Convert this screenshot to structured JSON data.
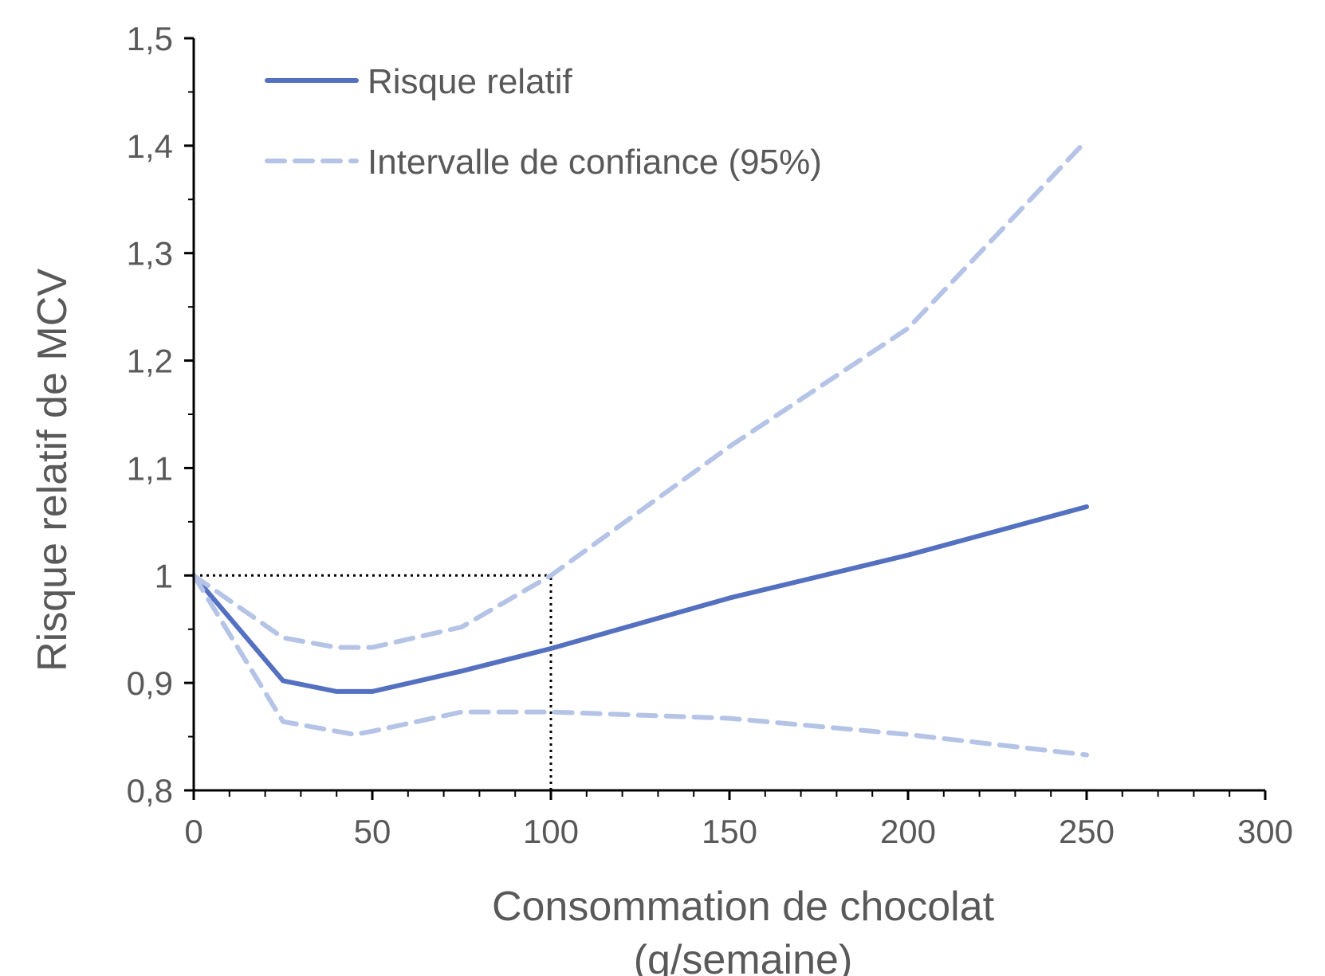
{
  "chart_data": {
    "type": "line",
    "xlabel": [
      "Consommation de chocolat",
      "(g/semaine)"
    ],
    "ylabel": "Risque relatif de MCV",
    "xlim": [
      0,
      300
    ],
    "ylim": [
      0.8,
      1.5
    ],
    "x_ticks": [
      0,
      50,
      100,
      150,
      200,
      250,
      300
    ],
    "x_tick_labels": [
      "0",
      "50",
      "100",
      "150",
      "200",
      "250",
      "300"
    ],
    "y_ticks": [
      0.8,
      0.9,
      1.0,
      1.1,
      1.2,
      1.3,
      1.4,
      1.5
    ],
    "y_tick_labels": [
      "0,8",
      "0,9",
      "1",
      "1,1",
      "1,2",
      "1,3",
      "1,4",
      "1,5"
    ],
    "grid": false,
    "legend_position": "top-left",
    "series": [
      {
        "name": "Risque relatif",
        "style": "solid",
        "color": "#5470C0",
        "x": [
          0,
          25,
          40,
          50,
          75,
          100,
          150,
          200,
          250
        ],
        "y": [
          1.0,
          0.902,
          0.892,
          0.892,
          0.911,
          0.932,
          0.979,
          1.019,
          1.064
        ]
      },
      {
        "name": "Intervalle de confiance (95%)",
        "style": "dashed",
        "color": "#B4C3E6",
        "x": [
          0,
          25,
          40,
          50,
          75,
          100,
          150,
          200,
          250
        ],
        "y": [
          1.0,
          0.942,
          0.933,
          0.933,
          0.952,
          1.0,
          1.12,
          1.23,
          1.405
        ]
      },
      {
        "name": "",
        "style": "dashed",
        "color": "#B4C3E6",
        "x": [
          0,
          25,
          45,
          50,
          75,
          100,
          150,
          200,
          250
        ],
        "y": [
          1.0,
          0.864,
          0.852,
          0.855,
          0.873,
          0.873,
          0.867,
          0.852,
          0.833
        ]
      }
    ],
    "reference_lines": {
      "style": "dotted",
      "color": "#000000",
      "horizontal": {
        "y": 1.0,
        "x_from": 0,
        "x_to": 100
      },
      "vertical": {
        "x": 100,
        "y_from": 0.8,
        "y_to": 1.0
      }
    }
  }
}
